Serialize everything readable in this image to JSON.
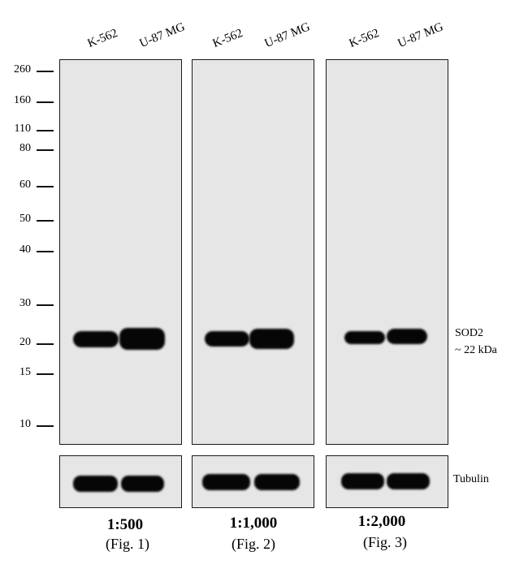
{
  "lanes": {
    "panel1": [
      "K-562",
      "U-87 MG"
    ],
    "panel2": [
      "K-562",
      "U-87 MG"
    ],
    "panel3": [
      "K-562",
      "U-87 MG"
    ]
  },
  "markers": [
    "260",
    "160",
    "110",
    "80",
    "60",
    "50",
    "40",
    "30",
    "20",
    "15",
    "10"
  ],
  "target": {
    "name": "SOD2",
    "size": "~ 22 kDa"
  },
  "loading_control": "Tubulin",
  "dilutions": [
    {
      "ratio": "1:500",
      "fig": "(Fig. 1)"
    },
    {
      "ratio": "1:1,000",
      "fig": "(Fig. 2)"
    },
    {
      "ratio": "1:2,000",
      "fig": "(Fig. 3)"
    }
  ],
  "colors": {
    "membrane": "#e6e6e6",
    "band": "#060606"
  }
}
